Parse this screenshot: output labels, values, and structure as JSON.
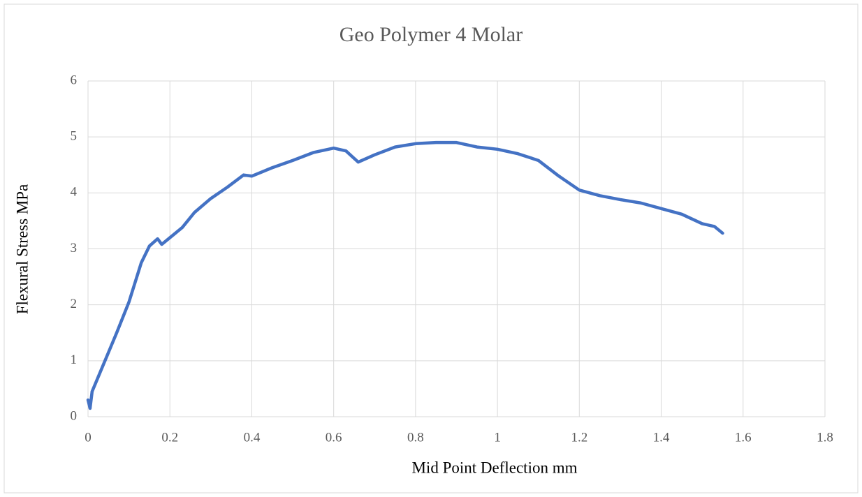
{
  "chart_data": {
    "type": "line",
    "title": "Geo Polymer 4 Molar",
    "xlabel": "Mid Point Deflection mm",
    "ylabel": "Flexural Stress MPa",
    "x": [
      0.0,
      0.005,
      0.01,
      0.03,
      0.05,
      0.07,
      0.1,
      0.13,
      0.15,
      0.17,
      0.18,
      0.2,
      0.23,
      0.26,
      0.3,
      0.34,
      0.38,
      0.4,
      0.45,
      0.5,
      0.55,
      0.6,
      0.63,
      0.66,
      0.7,
      0.75,
      0.8,
      0.85,
      0.9,
      0.95,
      1.0,
      1.05,
      1.1,
      1.15,
      1.2,
      1.25,
      1.3,
      1.35,
      1.4,
      1.45,
      1.5,
      1.53,
      1.55
    ],
    "values": [
      0.3,
      0.15,
      0.45,
      0.8,
      1.15,
      1.5,
      2.05,
      2.75,
      3.05,
      3.18,
      3.08,
      3.2,
      3.38,
      3.65,
      3.9,
      4.1,
      4.32,
      4.3,
      4.45,
      4.58,
      4.72,
      4.8,
      4.75,
      4.55,
      4.68,
      4.82,
      4.88,
      4.9,
      4.9,
      4.82,
      4.78,
      4.7,
      4.58,
      4.3,
      4.05,
      3.95,
      3.88,
      3.82,
      3.72,
      3.62,
      3.45,
      3.4,
      3.28
    ],
    "color": "#4472c4",
    "xlim": [
      0,
      1.8
    ],
    "xticks": [
      0,
      0.2,
      0.4,
      0.6,
      0.8,
      1,
      1.2,
      1.4,
      1.6,
      1.8
    ],
    "ylim": [
      0,
      6
    ],
    "yticks": [
      0,
      1,
      2,
      3,
      4,
      5,
      6
    ],
    "grid": true
  }
}
